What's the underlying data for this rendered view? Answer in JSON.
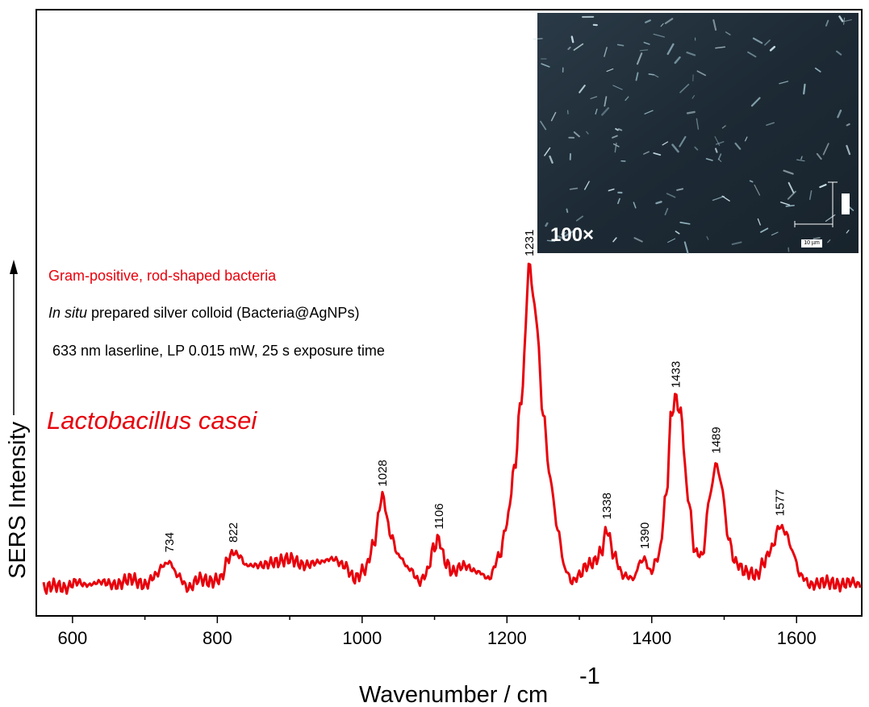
{
  "chart_data": {
    "type": "line",
    "title": "",
    "xlabel": "Wavenumber / cm",
    "xlabel_superscript": "-1",
    "ylabel": "SERS Intensity",
    "xlim": [
      550,
      1690
    ],
    "ylim": [
      0,
      1.05
    ],
    "x_ticks": [
      600,
      800,
      1000,
      1200,
      1400,
      1600
    ],
    "grid": false,
    "legend": "none",
    "series": [
      {
        "name": "",
        "color": "#e8000b",
        "x": [
          560,
          575,
          590,
          605,
          620,
          640,
          660,
          680,
          700,
          715,
          725,
          734,
          745,
          760,
          775,
          790,
          805,
          815,
          822,
          830,
          840,
          860,
          880,
          900,
          920,
          940,
          960,
          975,
          990,
          1005,
          1015,
          1028,
          1040,
          1050,
          1065,
          1080,
          1090,
          1098,
          1106,
          1115,
          1125,
          1140,
          1160,
          1175,
          1190,
          1200,
          1210,
          1220,
          1231,
          1240,
          1250,
          1260,
          1270,
          1280,
          1290,
          1300,
          1310,
          1320,
          1330,
          1338,
          1348,
          1360,
          1375,
          1384,
          1390,
          1398,
          1410,
          1420,
          1427,
          1433,
          1440,
          1450,
          1460,
          1470,
          1480,
          1489,
          1497,
          1505,
          1515,
          1530,
          1545,
          1555,
          1565,
          1577,
          1585,
          1595,
          1605,
          1620,
          1640,
          1660,
          1675,
          1688
        ],
        "values": [
          0.02,
          0.03,
          0.02,
          0.04,
          0.03,
          0.04,
          0.03,
          0.05,
          0.03,
          0.06,
          0.09,
          0.1,
          0.06,
          0.02,
          0.05,
          0.04,
          0.05,
          0.11,
          0.13,
          0.12,
          0.09,
          0.09,
          0.1,
          0.11,
          0.09,
          0.1,
          0.11,
          0.09,
          0.05,
          0.08,
          0.15,
          0.3,
          0.18,
          0.12,
          0.08,
          0.04,
          0.07,
          0.14,
          0.17,
          0.1,
          0.07,
          0.09,
          0.07,
          0.05,
          0.12,
          0.22,
          0.38,
          0.6,
          1.0,
          0.85,
          0.55,
          0.35,
          0.2,
          0.08,
          0.04,
          0.06,
          0.09,
          0.1,
          0.13,
          0.2,
          0.12,
          0.06,
          0.05,
          0.1,
          0.11,
          0.07,
          0.12,
          0.3,
          0.55,
          0.6,
          0.55,
          0.3,
          0.13,
          0.12,
          0.3,
          0.4,
          0.33,
          0.18,
          0.1,
          0.07,
          0.06,
          0.1,
          0.14,
          0.21,
          0.19,
          0.13,
          0.06,
          0.03,
          0.04,
          0.03,
          0.04,
          0.03
        ]
      }
    ],
    "peak_labels": [
      {
        "x": 734,
        "label": "734"
      },
      {
        "x": 822,
        "label": "822"
      },
      {
        "x": 1028,
        "label": "1028"
      },
      {
        "x": 1106,
        "label": "1106"
      },
      {
        "x": 1231,
        "label": "1231"
      },
      {
        "x": 1338,
        "label": "1338"
      },
      {
        "x": 1390,
        "label": "1390"
      },
      {
        "x": 1433,
        "label": "1433"
      },
      {
        "x": 1489,
        "label": "1489"
      },
      {
        "x": 1577,
        "label": "1577"
      }
    ],
    "annotations": {
      "line1": "Gram-positive, rod-shaped bacteria",
      "line2_italic": "In situ",
      "line2_rest": " prepared silver colloid (Bacteria@AgNPs)",
      "line3": "633 nm laserline, LP 0.015 mW, 25 s exposure time",
      "species": "Lactobacillus casei"
    },
    "inset": {
      "magnification": "100×",
      "scale_bar": "10 µm",
      "background": "#1e2c38"
    },
    "colors": {
      "accent": "#e8000b",
      "axis": "#000000"
    }
  }
}
